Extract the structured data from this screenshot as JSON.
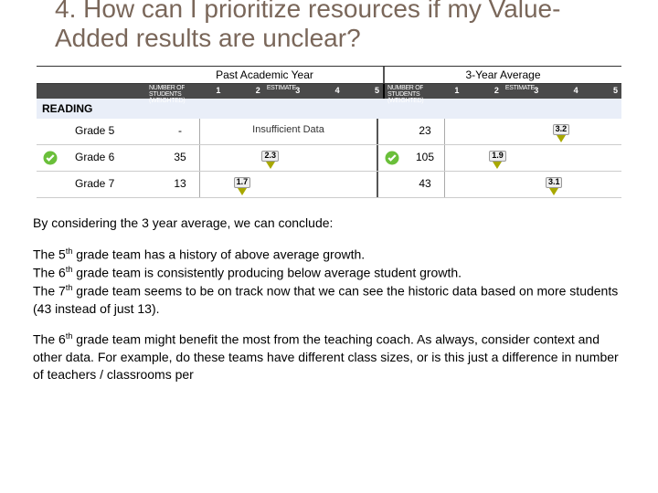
{
  "heading": "4. How can I prioritize resources if my Value-Added results are unclear?",
  "headers": {
    "past": "Past Academic Year",
    "avg": "3-Year Average"
  },
  "scale": {
    "numLabel": "NUMBER OF STUDENTS (WEIGHTED)",
    "estLabel": "ESTIMATE",
    "ticks": [
      "1",
      "2",
      "3",
      "4",
      "5"
    ]
  },
  "subject": "READING",
  "rows": [
    {
      "grade": "Grade 5",
      "past": {
        "count": "-",
        "insufficient": "Insufficient Data",
        "check": false
      },
      "avg": {
        "count": "23",
        "value": "3.2",
        "pos": 58,
        "check": false
      }
    },
    {
      "grade": "Grade 6",
      "past": {
        "count": "35",
        "value": "2.3",
        "pos": 32,
        "check": true
      },
      "avg": {
        "count": "105",
        "value": "1.9",
        "pos": 22,
        "check": true
      }
    },
    {
      "grade": "Grade 7",
      "past": {
        "count": "13",
        "value": "1.7",
        "pos": 16,
        "check": false
      },
      "avg": {
        "count": "43",
        "value": "3.1",
        "pos": 54,
        "check": false
      }
    }
  ],
  "text": {
    "p1": "By considering the 3 year average, we can conclude:",
    "p2a": "The 5",
    "p2b": " grade team has a history of above average growth.",
    "p3a": "The 6",
    "p3b": " grade team is consistently producing below average student growth.",
    "p4a": "The 7",
    "p4b": " grade team seems to be on track now that we can see the historic data based on more students (43 instead of just 13).",
    "p5a": "The 6",
    "p5b": " grade team might benefit the most from the teaching coach. As always, consider context and other data. For example, do these teams have different class sizes, or is this just a difference in number of teachers / classrooms per"
  },
  "colors": {
    "heading": "#7a675a",
    "scaleBg": "#4a4a4a",
    "subjectBg": "#e9eef8",
    "pin": "#a8a800",
    "check": "#6abf3a"
  }
}
